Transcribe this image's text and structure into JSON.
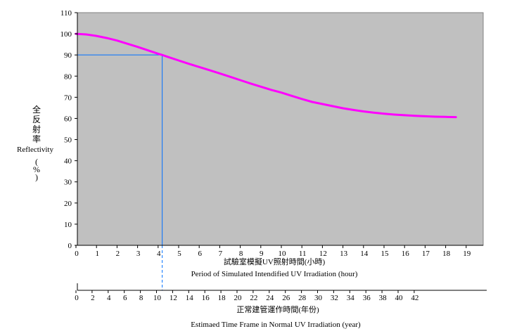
{
  "chart_data": {
    "type": "line",
    "title": "",
    "ylabel_cjk": [
      "全",
      "反",
      "射",
      "率"
    ],
    "ylabel_en": "Reflectivity",
    "ylabel_unit_parts": [
      "(",
      "%",
      ")"
    ],
    "xlabel_primary_cjk": "試驗室模擬UV照射時間(小時)",
    "xlabel_primary_en": "Period of Simulated Intendified UV Irradiation  (hour)",
    "xlabel_secondary_cjk": "正常建管運作時間(年份)",
    "xlabel_secondary_en": "Estimaed Time Frame in Normal UV Irradiation  (year)",
    "xlim": [
      0,
      20
    ],
    "ylim": [
      0,
      110
    ],
    "y_ticks": [
      0,
      10,
      20,
      30,
      40,
      50,
      60,
      70,
      80,
      90,
      100,
      110
    ],
    "x_ticks": [
      "0",
      "1",
      "2",
      "3",
      "4",
      "5",
      "6",
      "7",
      "8",
      "9",
      "10",
      "11",
      "12",
      "13",
      "14",
      "15",
      "16",
      "17",
      "18",
      "19"
    ],
    "x2_ticks": [
      "0",
      "2",
      "4",
      "6",
      "8",
      "10",
      "12",
      "14",
      "16",
      "18",
      "20",
      "22",
      "24",
      "26",
      "28",
      "30",
      "32",
      "34",
      "36",
      "38",
      "40",
      "42"
    ],
    "series": [
      {
        "x": [
          0,
          0.5,
          1,
          1.5,
          2,
          2.5,
          3,
          3.5,
          4,
          4.2,
          4.5,
          5,
          5.5,
          6,
          6.5,
          7,
          7.5,
          8,
          8.5,
          9,
          9.5,
          10,
          10.5,
          11,
          11.5,
          12,
          12.5,
          13,
          13.5,
          14,
          14.5,
          15,
          15.5,
          16,
          16.5,
          17,
          17.5,
          18,
          18.5
        ],
        "y": [
          100,
          99.7,
          99,
          98,
          96.8,
          95.3,
          93.8,
          92.2,
          90.6,
          90,
          89,
          87.4,
          85.8,
          84.3,
          82.8,
          81.3,
          79.7,
          78.1,
          76.5,
          75,
          73.5,
          72.2,
          70.7,
          69.2,
          67.8,
          66.8,
          65.8,
          64.8,
          64,
          63.3,
          62.7,
          62.2,
          61.8,
          61.5,
          61.2,
          61,
          60.8,
          60.7,
          60.6
        ]
      }
    ],
    "marker": {
      "x": 4.2,
      "y": 90
    },
    "colors": {
      "plot_bg": "#c0c0c0",
      "series": "#ff00ff",
      "marker_line": "#0070ff"
    }
  }
}
